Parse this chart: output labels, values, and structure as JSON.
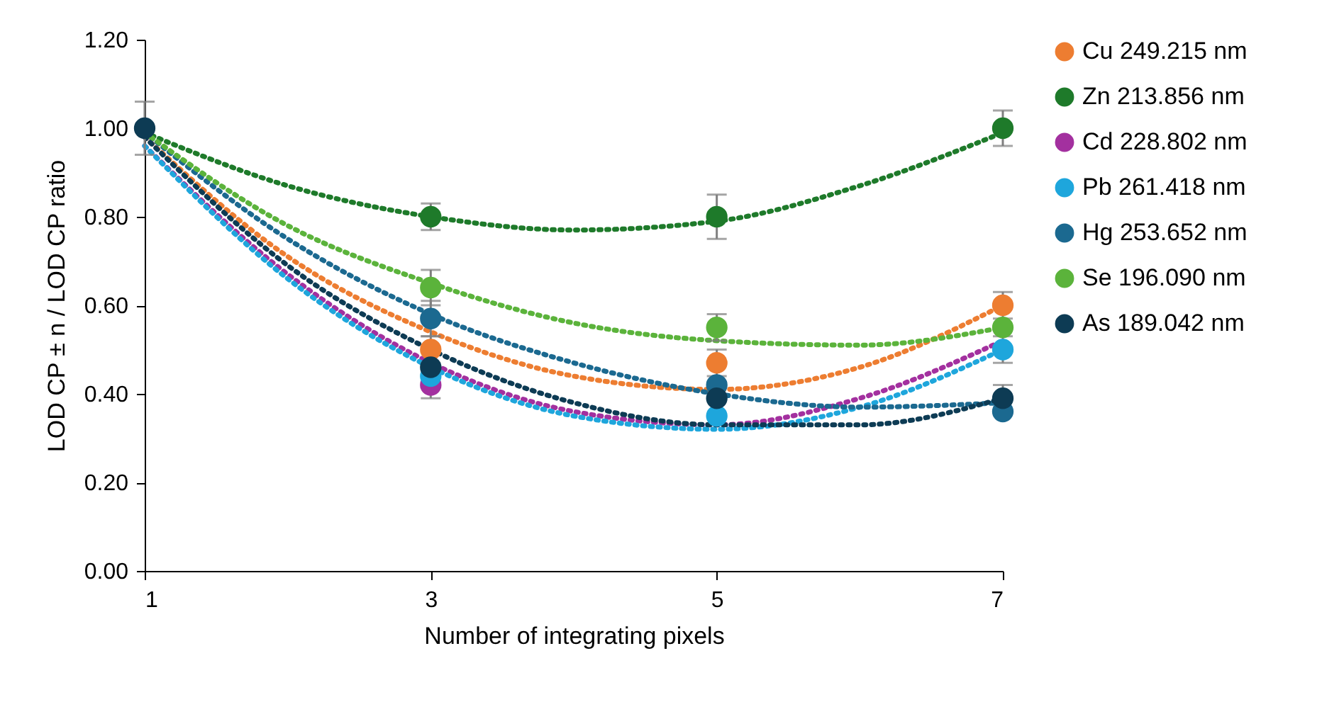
{
  "chart_data": {
    "type": "scatter",
    "xlabel": "Number of integrating pixels",
    "ylabel": "LOD CP ± n / LOD CP ratio",
    "x": [
      1,
      3,
      5,
      7
    ],
    "xlim": [
      1,
      7
    ],
    "xticks": [
      1,
      3,
      5,
      7
    ],
    "ylim": [
      0,
      1.2
    ],
    "yticks": [
      {
        "value": 0,
        "label": "0.00"
      },
      {
        "value": 0.2,
        "label": "0.20"
      },
      {
        "value": 0.4,
        "label": "0.40"
      },
      {
        "value": 0.6,
        "label": "0.60"
      },
      {
        "value": 0.8,
        "label": "0.80"
      },
      {
        "value": 1.0,
        "label": "1.00"
      },
      {
        "value": 1.2,
        "label": "1.20"
      }
    ],
    "grid": false,
    "legend": "right",
    "marker": "circle",
    "series": [
      {
        "name": "Cu 249.215 nm",
        "color": "#ed7d31",
        "values": [
          null,
          0.5,
          0.47,
          0.6
        ],
        "errors": [
          null,
          0.03,
          0.03,
          0.03
        ]
      },
      {
        "name": "Zn 213.856 nm",
        "color": "#1e7a2a",
        "values": [
          null,
          0.8,
          0.8,
          1.0
        ],
        "errors": [
          null,
          0.03,
          0.05,
          0.04
        ]
      },
      {
        "name": "Cd 228.802 nm",
        "color": "#a3309f",
        "values": [
          null,
          0.42,
          null,
          null
        ],
        "errors": [
          null,
          0.03,
          null,
          null
        ]
      },
      {
        "name": "Pb 261.418 nm",
        "color": "#1ea6dc",
        "values": [
          null,
          0.44,
          0.35,
          0.5
        ],
        "errors": [
          null,
          null,
          null,
          0.03
        ]
      },
      {
        "name": "Hg 253.652 nm",
        "color": "#1b6990",
        "values": [
          null,
          0.57,
          0.42,
          0.36
        ],
        "errors": [
          null,
          0.04,
          null,
          null
        ]
      },
      {
        "name": "Se 196.090 nm",
        "color": "#5bb33b",
        "values": [
          null,
          0.64,
          0.55,
          0.55
        ],
        "errors": [
          null,
          0.04,
          0.03,
          null
        ]
      },
      {
        "name": "As 189.042 nm",
        "color": "#0d3b54",
        "values": [
          1.0,
          0.46,
          0.39,
          0.39
        ],
        "errors": [
          0.06,
          null,
          null,
          0.03
        ]
      },
      {
        "type": "line",
        "marker": "none",
        "line_style": "dotted",
        "color": "#ed7d31",
        "x": [
          1,
          2,
          3,
          4,
          5,
          6,
          7
        ],
        "values": [
          0.98,
          0.71,
          0.54,
          0.44,
          0.41,
          0.46,
          0.6
        ]
      },
      {
        "type": "line",
        "marker": "none",
        "line_style": "dotted",
        "color": "#1e7a2a",
        "x": [
          1,
          2,
          3,
          4,
          5,
          6,
          7
        ],
        "values": [
          0.99,
          0.87,
          0.8,
          0.77,
          0.79,
          0.87,
          0.99
        ]
      },
      {
        "type": "line",
        "marker": "none",
        "line_style": "dotted",
        "color": "#a3309f",
        "x": [
          1,
          2,
          3,
          4,
          5,
          6,
          7
        ],
        "values": [
          0.96,
          0.67,
          0.47,
          0.36,
          0.33,
          0.39,
          0.52
        ]
      },
      {
        "type": "line",
        "marker": "none",
        "line_style": "dotted",
        "color": "#1ea6dc",
        "x": [
          1,
          2,
          3,
          4,
          5,
          6,
          7
        ],
        "values": [
          0.96,
          0.66,
          0.46,
          0.35,
          0.32,
          0.37,
          0.5
        ]
      },
      {
        "type": "line",
        "marker": "none",
        "line_style": "dotted",
        "color": "#1b6990",
        "x": [
          1,
          2,
          3,
          4,
          5,
          6,
          7
        ],
        "values": [
          0.99,
          0.75,
          0.58,
          0.47,
          0.4,
          0.37,
          0.38
        ]
      },
      {
        "type": "line",
        "marker": "none",
        "line_style": "dotted",
        "color": "#5bb33b",
        "x": [
          1,
          2,
          3,
          4,
          5,
          6,
          7
        ],
        "values": [
          0.99,
          0.78,
          0.65,
          0.56,
          0.52,
          0.51,
          0.55
        ]
      },
      {
        "type": "line",
        "marker": "none",
        "line_style": "dotted",
        "color": "#0d3b54",
        "x": [
          1,
          2,
          3,
          4,
          5,
          6,
          7
        ],
        "values": [
          0.98,
          0.69,
          0.5,
          0.38,
          0.33,
          0.33,
          0.39
        ]
      }
    ]
  }
}
